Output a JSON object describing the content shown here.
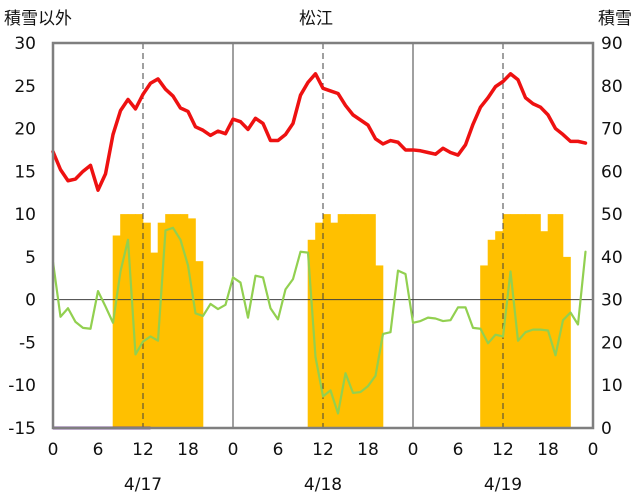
{
  "chart_data": {
    "type": "bar+line",
    "title": "松江",
    "left_axis_label": "積雪以外",
    "right_axis_label": "積雪",
    "left_ylim": [
      -15,
      30
    ],
    "left_ticks": [
      30,
      25,
      20,
      15,
      10,
      5,
      0,
      -5,
      -10,
      -15
    ],
    "right_ylim": [
      0,
      90
    ],
    "right_ticks": [
      90,
      80,
      70,
      60,
      50,
      40,
      30,
      20,
      10,
      0
    ],
    "x_hours": [
      0,
      72
    ],
    "x_tick_values": [
      0,
      6,
      12,
      18,
      24,
      30,
      36,
      42,
      48,
      54,
      60,
      66,
      72
    ],
    "x_tick_labels": [
      "0",
      "6",
      "12",
      "18",
      "0",
      "6",
      "12",
      "18",
      "0",
      "6",
      "12",
      "18",
      "0"
    ],
    "dates": [
      {
        "hour": 12,
        "label": "4/17"
      },
      {
        "hour": 36,
        "label": "4/18"
      },
      {
        "hour": 60,
        "label": "4/19"
      }
    ],
    "day_boundaries_hours": [
      24,
      48
    ],
    "dashed_guides_hours": [
      12,
      36,
      60
    ],
    "colors": {
      "red_line": "#ee1111",
      "green_line": "#92d050",
      "bars": "#ffc000",
      "purple_line": "#7030a0",
      "frame": "#7f7f7f",
      "grid": "#404040"
    },
    "red_series": {
      "axis": "left",
      "values": [
        17.3,
        15.2,
        13.9,
        14.1,
        15.0,
        15.7,
        12.8,
        14.7,
        19.3,
        22.1,
        23.4,
        22.3,
        24.0,
        25.3,
        25.8,
        24.6,
        23.8,
        22.4,
        22.0,
        20.2,
        19.8,
        19.2,
        19.7,
        19.4,
        21.1,
        20.8,
        19.9,
        21.2,
        20.6,
        18.6,
        18.6,
        19.3,
        20.6,
        23.9,
        25.4,
        26.4,
        24.7,
        24.4,
        24.1,
        22.7,
        21.6,
        21.0,
        20.4,
        18.8,
        18.2,
        18.6,
        18.4,
        17.5,
        17.5,
        17.4,
        17.2,
        17.0,
        17.7,
        17.2,
        16.9,
        18.1,
        20.5,
        22.5,
        23.6,
        24.9,
        25.5,
        26.4,
        25.7,
        23.6,
        22.9,
        22.5,
        21.6,
        20.0,
        19.3,
        18.5,
        18.5,
        18.3
      ]
    },
    "green_series": {
      "axis": "left",
      "values": [
        4.4,
        -2.0,
        -1.0,
        -2.6,
        -3.3,
        -3.4,
        1.0,
        -0.8,
        -2.7,
        3.3,
        7.0,
        -6.4,
        -4.9,
        -4.3,
        -4.8,
        8.1,
        8.4,
        7.0,
        4.0,
        -1.6,
        -1.9,
        -0.5,
        -1.1,
        -0.6,
        2.6,
        2.0,
        -2.1,
        2.8,
        2.6,
        -1.0,
        -2.3,
        1.2,
        2.4,
        5.6,
        5.5,
        -6.7,
        -11.3,
        -10.6,
        -13.3,
        -8.6,
        -10.9,
        -10.8,
        -10.1,
        -8.9,
        -4.0,
        -3.8,
        3.4,
        3.0,
        -2.7,
        -2.5,
        -2.1,
        -2.2,
        -2.5,
        -2.4,
        -0.9,
        -0.9,
        -3.3,
        -3.4,
        -5.1,
        -4.1,
        -4.3,
        3.3,
        -4.8,
        -3.8,
        -3.5,
        -3.5,
        -3.6,
        -6.5,
        -2.4,
        -1.5,
        -2.9,
        5.6
      ]
    },
    "bar_series": {
      "axis": "right",
      "values": [
        0,
        0,
        0,
        0,
        0,
        0,
        0,
        0,
        45,
        50,
        50,
        50,
        48,
        41,
        48,
        50,
        50,
        50,
        49,
        39,
        0,
        0,
        0,
        0,
        0,
        0,
        0,
        0,
        0,
        0,
        0,
        0,
        0,
        0,
        44,
        48,
        50,
        48,
        50,
        50,
        50,
        50,
        50,
        38,
        0,
        0,
        0,
        0,
        0,
        0,
        0,
        0,
        0,
        0,
        0,
        0,
        0,
        38,
        44,
        46,
        50,
        50,
        50,
        50,
        50,
        46,
        50,
        50,
        40,
        0,
        0,
        0
      ]
    },
    "purple_segment": {
      "axis": "left",
      "value": -15,
      "x_from": 0,
      "x_to": 13
    }
  }
}
